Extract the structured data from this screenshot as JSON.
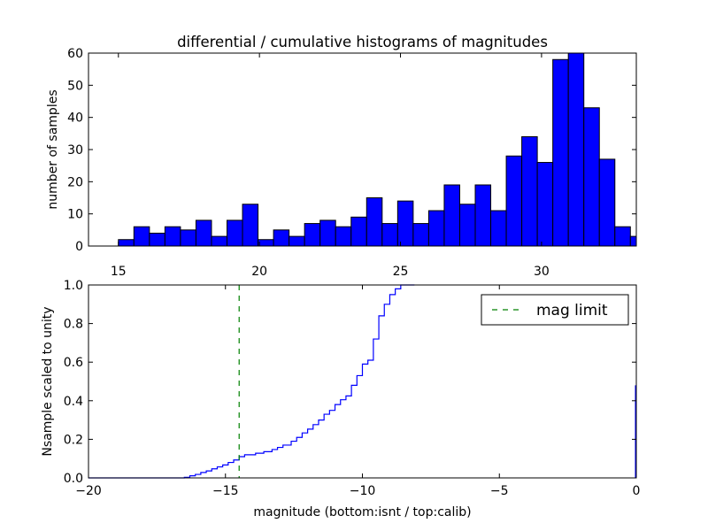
{
  "chart_data": [
    {
      "type": "bar",
      "title": "differential / cumulative histograms of magnitudes",
      "xlabel": "",
      "ylabel": "number of samples",
      "xlim": [
        13.94,
        33.36
      ],
      "ylim": [
        0,
        60
      ],
      "xticks": [
        15,
        20,
        25,
        30
      ],
      "xtick_labels": [
        "15",
        "20",
        "25",
        "30"
      ],
      "yticks": [
        0,
        10,
        20,
        30,
        40,
        50,
        60
      ],
      "ytick_labels": [
        "0",
        "10",
        "20",
        "30",
        "40",
        "50",
        "60"
      ],
      "xticks_position": "top",
      "bar_color": "#0000ff",
      "bins_start": 15.0,
      "bin_width": 0.55,
      "values": [
        2,
        6,
        4,
        6,
        5,
        8,
        3,
        8,
        13,
        2,
        5,
        3,
        7,
        8,
        6,
        9,
        15,
        7,
        14,
        7,
        11,
        19,
        13,
        19,
        11,
        28,
        34,
        26,
        58,
        60,
        43,
        27,
        6,
        3
      ]
    },
    {
      "type": "line",
      "step": true,
      "xlabel": "magnitude (bottom:isnt / top:calib)",
      "ylabel": "Nsample scaled to unity",
      "xlim": [
        -20,
        0
      ],
      "ylim": [
        0,
        1
      ],
      "xticks": [
        -20,
        -15,
        -10,
        -5,
        0
      ],
      "xtick_labels": [
        "−20",
        "−15",
        "−10",
        "−5",
        "0"
      ],
      "yticks": [
        0,
        0.2,
        0.4,
        0.6,
        0.8,
        1.0
      ],
      "ytick_labels": [
        "0.0",
        "0.2",
        "0.4",
        "0.6",
        "0.8",
        "1.0"
      ],
      "series": [
        {
          "name": "cumulative",
          "color": "#0000ff",
          "x": [
            -20,
            -16.5,
            -16.3,
            -16.1,
            -15.9,
            -15.7,
            -15.5,
            -15.3,
            -15.1,
            -14.9,
            -14.7,
            -14.5,
            -14.3,
            -13.9,
            -13.6,
            -13.3,
            -13.1,
            -12.9,
            -12.6,
            -12.4,
            -12.2,
            -12.0,
            -11.8,
            -11.6,
            -11.4,
            -11.2,
            -11.0,
            -10.8,
            -10.6,
            -10.4,
            -10.2,
            -10.0,
            -9.8,
            -9.6,
            -9.4,
            -9.2,
            -9.0,
            -8.8,
            -8.6,
            -8.4
          ],
          "y": [
            0,
            0.003,
            0.011,
            0.018,
            0.028,
            0.036,
            0.047,
            0.057,
            0.067,
            0.08,
            0.093,
            0.11,
            0.12,
            0.128,
            0.136,
            0.147,
            0.158,
            0.17,
            0.19,
            0.21,
            0.233,
            0.253,
            0.276,
            0.3,
            0.33,
            0.35,
            0.38,
            0.405,
            0.425,
            0.48,
            0.53,
            0.59,
            0.61,
            0.72,
            0.84,
            0.9,
            0.95,
            0.98,
            1.0,
            1.0
          ]
        },
        {
          "name": "mag limit",
          "color": "#008000",
          "dashed": true,
          "x_value": -14.5
        }
      ],
      "legend": {
        "entries": [
          "mag limit"
        ],
        "placement": "top-right"
      }
    }
  ]
}
